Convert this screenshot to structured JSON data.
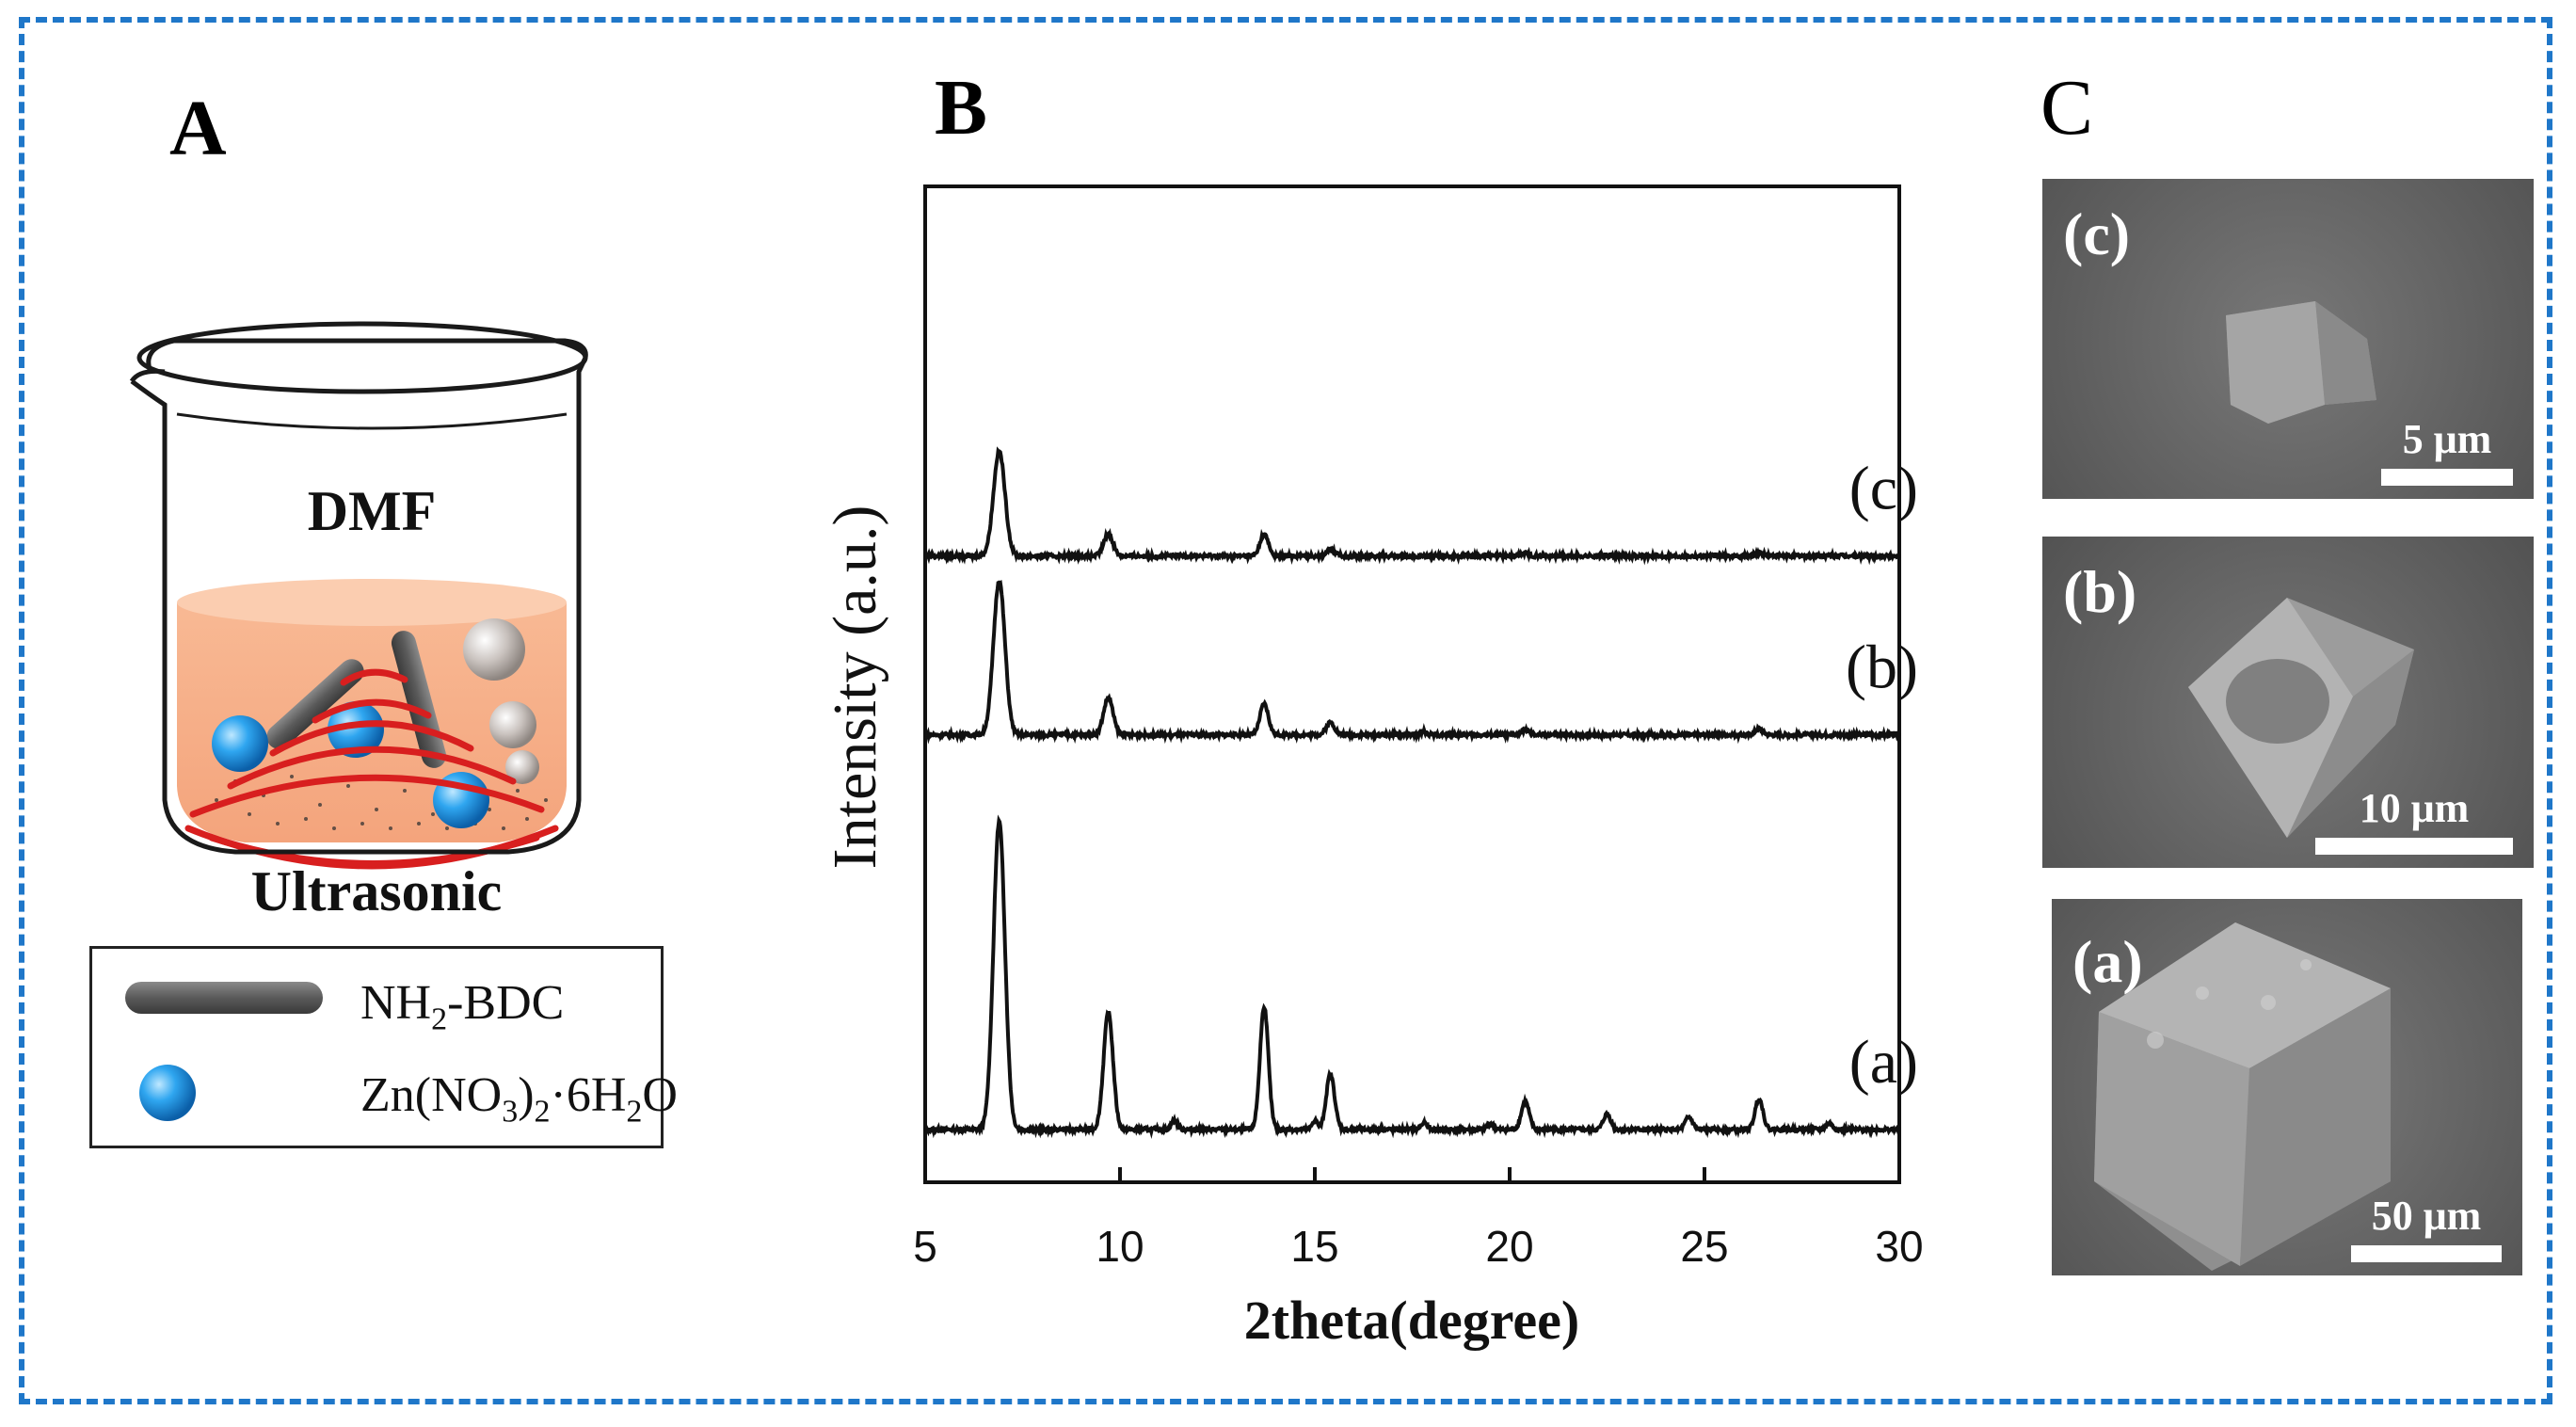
{
  "panels": {
    "a_label": "A",
    "b_label": "B",
    "c_label": "C"
  },
  "schematic": {
    "solvent_label": "DMF",
    "method_label": "Ultrasonic",
    "legend": [
      {
        "text": "NH2-BDC",
        "symbol": "rod-icon"
      },
      {
        "text": "Zn(NO3)2·6H2O",
        "symbol": "sphere-icon"
      }
    ]
  },
  "chart_data": {
    "type": "line",
    "xlabel": "2theta(degree)",
    "ylabel": "Intensity (a.u.)",
    "xlim": [
      5,
      30
    ],
    "xticks": [
      5,
      10,
      15,
      20,
      25,
      30
    ],
    "yticks": [],
    "peaks_2theta": [
      6.9,
      9.7,
      11.4,
      13.7,
      15.0,
      15.4,
      17.8,
      19.5,
      20.4,
      22.5,
      24.6,
      26.4,
      28.2
    ],
    "series": [
      {
        "name": "(a)",
        "offset": 0,
        "values": [
          1.0,
          0.38,
          0.03,
          0.4,
          0.03,
          0.18,
          0.02,
          0.02,
          0.09,
          0.05,
          0.04,
          0.1,
          0.02
        ]
      },
      {
        "name": "(b)",
        "offset": 1.28,
        "values": [
          0.5,
          0.12,
          0.0,
          0.1,
          0.0,
          0.04,
          0.01,
          0.0,
          0.015,
          0.0,
          0.0,
          0.02,
          0.0
        ]
      },
      {
        "name": "(c)",
        "offset": 1.86,
        "values": [
          0.34,
          0.07,
          0.0,
          0.07,
          0.0,
          0.02,
          0.0,
          0.0,
          0.01,
          0.0,
          0.0,
          0.01,
          0.0
        ]
      }
    ]
  },
  "sem_images": [
    {
      "label": "(c)",
      "scale": "5  μm"
    },
    {
      "label": "(b)",
      "scale": "10  μm"
    },
    {
      "label": "(a)",
      "scale": "50 μm"
    }
  ]
}
